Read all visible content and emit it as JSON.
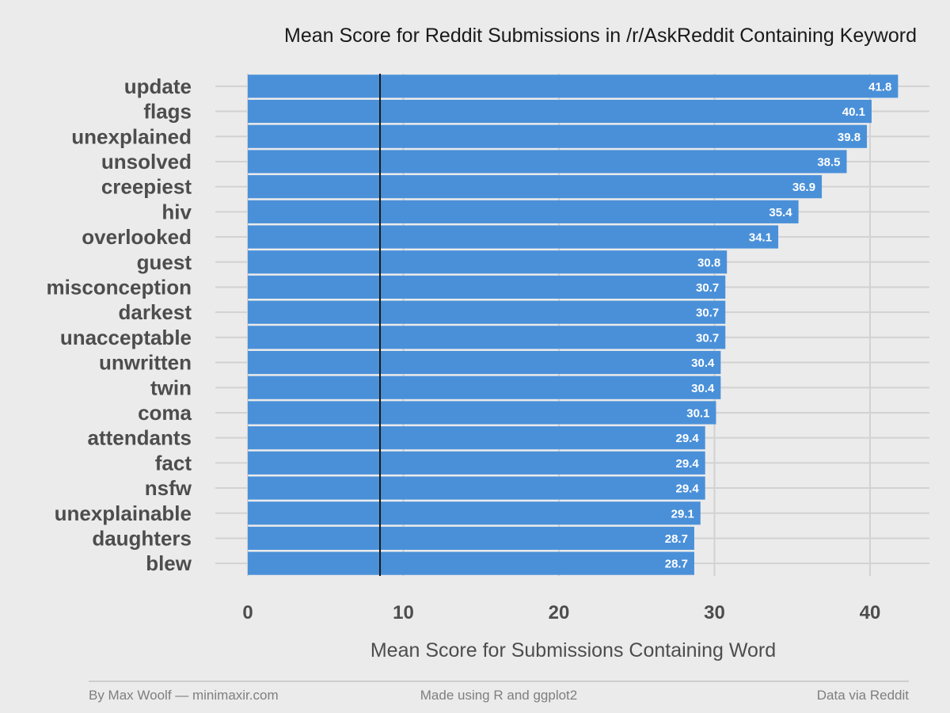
{
  "chart_data": {
    "type": "bar",
    "orientation": "horizontal",
    "title": "Mean Score for Reddit Submissions in /r/AskReddit Containing Keyword",
    "xlabel": "Mean Score for Submissions Containing Word",
    "ylabel": "",
    "xlim": [
      0,
      43.5
    ],
    "x_ticks": [
      0,
      10,
      20,
      30,
      40
    ],
    "reference_line": 8.5,
    "bar_color": "#4a90d9",
    "grid": true,
    "categories": [
      "update",
      "flags",
      "unexplained",
      "unsolved",
      "creepiest",
      "hiv",
      "overlooked",
      "guest",
      "misconception",
      "darkest",
      "unacceptable",
      "unwritten",
      "twin",
      "coma",
      "attendants",
      "fact",
      "nsfw",
      "unexplainable",
      "daughters",
      "blew"
    ],
    "values": [
      41.8,
      40.1,
      39.8,
      38.5,
      36.9,
      35.4,
      34.1,
      30.8,
      30.7,
      30.7,
      30.7,
      30.4,
      30.4,
      30.1,
      29.4,
      29.4,
      29.4,
      29.1,
      28.7,
      28.7
    ],
    "value_labels": [
      "41.8",
      "40.1",
      "39.8",
      "38.5",
      "36.9",
      "35.4",
      "34.1",
      "30.8",
      "30.7",
      "30.7",
      "30.7",
      "30.4",
      "30.4",
      "30.1",
      "29.4",
      "29.4",
      "29.4",
      "29.1",
      "28.7",
      "28.7"
    ]
  },
  "footer": {
    "left": "By Max Woolf — minimaxir.com",
    "center": "Made using R and ggplot2",
    "right": "Data via Reddit"
  },
  "colors": {
    "background": "#ebebeb",
    "bar": "#4a90d9",
    "grid": "#d2d2d2",
    "reference_line": "#1a1a1a"
  }
}
